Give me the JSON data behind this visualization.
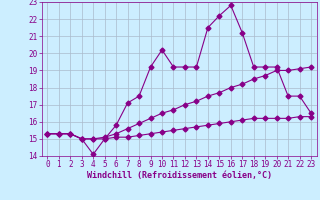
{
  "line1_x": [
    0,
    1,
    2,
    3,
    4,
    5,
    6,
    7,
    8,
    9,
    10,
    11,
    12,
    13,
    14,
    15,
    16,
    17,
    18,
    19,
    20,
    21,
    22,
    23
  ],
  "line1_y": [
    15.3,
    15.3,
    15.3,
    15.0,
    14.1,
    15.0,
    15.8,
    17.1,
    17.5,
    19.2,
    20.2,
    19.2,
    19.2,
    19.2,
    21.5,
    22.2,
    22.8,
    21.2,
    19.2,
    19.2,
    19.2,
    17.5,
    17.5,
    16.5
  ],
  "line2_x": [
    0,
    1,
    2,
    3,
    4,
    5,
    6,
    7,
    8,
    9,
    10,
    11,
    12,
    13,
    14,
    15,
    16,
    17,
    18,
    19,
    20,
    21,
    22,
    23
  ],
  "line2_y": [
    15.3,
    15.3,
    15.3,
    15.0,
    15.0,
    15.1,
    15.3,
    15.6,
    15.9,
    16.2,
    16.5,
    16.7,
    17.0,
    17.2,
    17.5,
    17.7,
    18.0,
    18.2,
    18.5,
    18.7,
    19.0,
    19.0,
    19.1,
    19.2
  ],
  "line3_x": [
    0,
    1,
    2,
    3,
    4,
    5,
    6,
    7,
    8,
    9,
    10,
    11,
    12,
    13,
    14,
    15,
    16,
    17,
    18,
    19,
    20,
    21,
    22,
    23
  ],
  "line3_y": [
    15.3,
    15.3,
    15.3,
    15.0,
    15.0,
    15.0,
    15.1,
    15.1,
    15.2,
    15.3,
    15.4,
    15.5,
    15.6,
    15.7,
    15.8,
    15.9,
    16.0,
    16.1,
    16.2,
    16.2,
    16.2,
    16.2,
    16.3,
    16.3
  ],
  "line_color": "#880088",
  "bg_color": "#cceeff",
  "grid_color": "#aabbcc",
  "xlabel": "Windchill (Refroidissement éolien,°C)",
  "xlim_min": -0.5,
  "xlim_max": 23.5,
  "ylim_min": 14,
  "ylim_max": 23,
  "yticks": [
    14,
    15,
    16,
    17,
    18,
    19,
    20,
    21,
    22,
    23
  ],
  "xticks": [
    0,
    1,
    2,
    3,
    4,
    5,
    6,
    7,
    8,
    9,
    10,
    11,
    12,
    13,
    14,
    15,
    16,
    17,
    18,
    19,
    20,
    21,
    22,
    23
  ],
  "marker": "D",
  "marker_size": 2.5,
  "line_width": 0.8,
  "xlabel_fontsize": 6.0,
  "tick_fontsize": 5.5
}
